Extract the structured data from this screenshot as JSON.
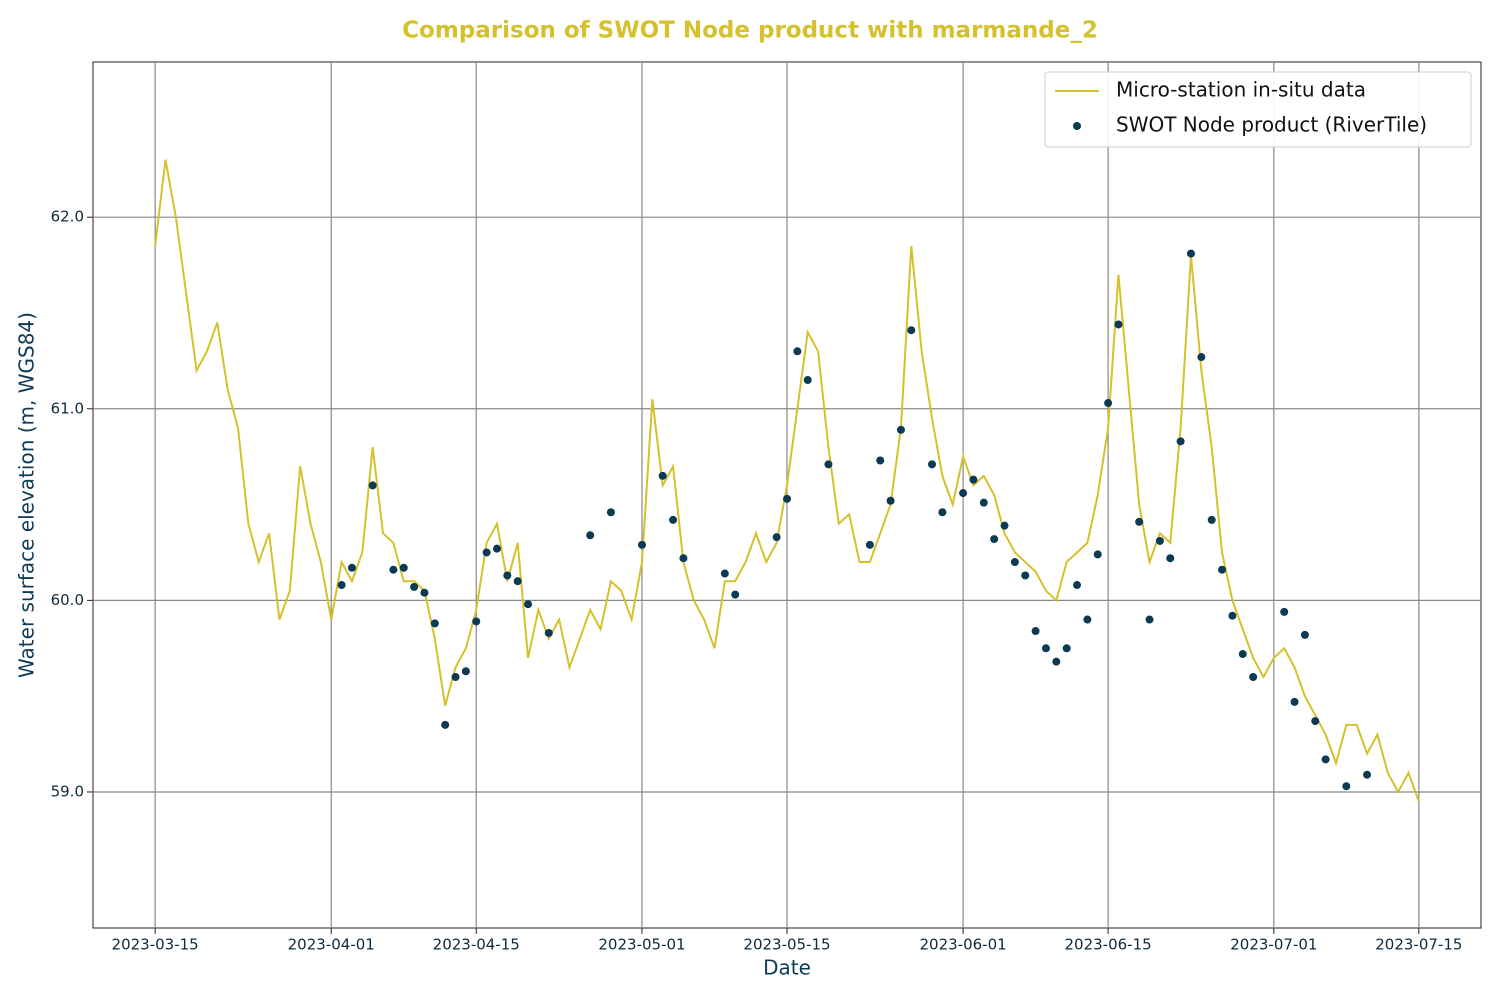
{
  "chart_data": {
    "type": "line-scatter",
    "title": "Comparison of SWOT Node product with marmande_2",
    "xlabel": "Date",
    "ylabel": "Water surface elevation (m, WGS84)",
    "xlim": [
      "2023-03-09",
      "2023-07-21"
    ],
    "xticks": [
      "2023-03-15",
      "2023-04-01",
      "2023-04-15",
      "2023-05-01",
      "2023-05-15",
      "2023-06-01",
      "2023-06-15",
      "2023-07-01",
      "2023-07-15"
    ],
    "ylim": [
      58.29,
      62.81
    ],
    "yticks": [
      {
        "value": 59,
        "label": "59.0"
      },
      {
        "value": 60,
        "label": "60.0"
      },
      {
        "value": 61,
        "label": "61.0"
      },
      {
        "value": 62,
        "label": "62.0"
      }
    ],
    "grid": true,
    "legend": "upper right",
    "series": [
      {
        "name": "Micro-station in-situ data",
        "kind": "line",
        "color": "#d4c12b",
        "x": [
          "2023-03-15",
          "2023-03-16",
          "2023-03-17",
          "2023-03-18",
          "2023-03-19",
          "2023-03-20",
          "2023-03-21",
          "2023-03-22",
          "2023-03-23",
          "2023-03-24",
          "2023-03-25",
          "2023-03-26",
          "2023-03-27",
          "2023-03-28",
          "2023-03-29",
          "2023-03-30",
          "2023-03-31",
          "2023-04-01",
          "2023-04-02",
          "2023-04-03",
          "2023-04-04",
          "2023-04-05",
          "2023-04-06",
          "2023-04-07",
          "2023-04-08",
          "2023-04-09",
          "2023-04-10",
          "2023-04-11",
          "2023-04-12",
          "2023-04-13",
          "2023-04-14",
          "2023-04-15",
          "2023-04-16",
          "2023-04-17",
          "2023-04-18",
          "2023-04-19",
          "2023-04-20",
          "2023-04-21",
          "2023-04-22",
          "2023-04-23",
          "2023-04-24",
          "2023-04-25",
          "2023-04-26",
          "2023-04-27",
          "2023-04-28",
          "2023-04-29",
          "2023-04-30",
          "2023-05-01",
          "2023-05-02",
          "2023-05-03",
          "2023-05-04",
          "2023-05-05",
          "2023-05-06",
          "2023-05-07",
          "2023-05-08",
          "2023-05-09",
          "2023-05-10",
          "2023-05-11",
          "2023-05-12",
          "2023-05-13",
          "2023-05-14",
          "2023-05-15",
          "2023-05-16",
          "2023-05-17",
          "2023-05-18",
          "2023-05-19",
          "2023-05-20",
          "2023-05-21",
          "2023-05-22",
          "2023-05-23",
          "2023-05-24",
          "2023-05-25",
          "2023-05-26",
          "2023-05-27",
          "2023-05-28",
          "2023-05-29",
          "2023-05-30",
          "2023-05-31",
          "2023-06-01",
          "2023-06-02",
          "2023-06-03",
          "2023-06-04",
          "2023-06-05",
          "2023-06-06",
          "2023-06-07",
          "2023-06-08",
          "2023-06-09",
          "2023-06-10",
          "2023-06-11",
          "2023-06-12",
          "2023-06-13",
          "2023-06-14",
          "2023-06-15",
          "2023-06-16",
          "2023-06-17",
          "2023-06-18",
          "2023-06-19",
          "2023-06-20",
          "2023-06-21",
          "2023-06-22",
          "2023-06-23",
          "2023-06-24",
          "2023-06-25",
          "2023-06-26",
          "2023-06-27",
          "2023-06-28",
          "2023-06-29",
          "2023-06-30",
          "2023-07-01",
          "2023-07-02",
          "2023-07-03",
          "2023-07-04",
          "2023-07-05",
          "2023-07-06",
          "2023-07-07",
          "2023-07-08",
          "2023-07-09",
          "2023-07-10",
          "2023-07-11",
          "2023-07-12",
          "2023-07-13",
          "2023-07-14",
          "2023-07-15"
        ],
        "values": [
          61.85,
          62.3,
          62.0,
          61.6,
          61.2,
          61.3,
          61.45,
          61.1,
          60.9,
          60.4,
          60.2,
          60.35,
          59.9,
          60.05,
          60.7,
          60.4,
          60.2,
          59.9,
          60.2,
          60.1,
          60.25,
          60.8,
          60.35,
          60.3,
          60.1,
          60.1,
          60.05,
          59.8,
          59.45,
          59.65,
          59.75,
          59.95,
          60.3,
          60.4,
          60.1,
          60.3,
          59.7,
          59.95,
          59.8,
          59.9,
          59.65,
          59.8,
          59.95,
          59.85,
          60.1,
          60.05,
          59.9,
          60.2,
          61.05,
          60.6,
          60.7,
          60.2,
          60.0,
          59.9,
          59.75,
          60.1,
          60.1,
          60.2,
          60.35,
          60.2,
          60.3,
          60.6,
          61.0,
          61.4,
          61.3,
          60.8,
          60.4,
          60.45,
          60.2,
          60.2,
          60.35,
          60.5,
          60.9,
          61.85,
          61.3,
          60.95,
          60.65,
          60.5,
          60.75,
          60.6,
          60.65,
          60.55,
          60.35,
          60.25,
          60.2,
          60.15,
          60.05,
          60.0,
          60.2,
          60.25,
          60.3,
          60.55,
          60.9,
          61.7,
          61.1,
          60.5,
          60.2,
          60.35,
          60.3,
          60.9,
          61.8,
          61.2,
          60.8,
          60.25,
          60.0,
          59.85,
          59.7,
          59.6,
          59.7,
          59.75,
          59.65,
          59.5,
          59.4,
          59.3,
          59.15,
          59.35,
          59.35,
          59.2,
          59.3,
          59.1,
          59.0,
          59.1,
          58.95
        ]
      },
      {
        "name": "SWOT Node product (RiverTile)",
        "kind": "scatter",
        "color": "#0b3a52",
        "x": [
          "2023-04-02",
          "2023-04-03",
          "2023-04-05",
          "2023-04-07",
          "2023-04-08",
          "2023-04-09",
          "2023-04-10",
          "2023-04-11",
          "2023-04-12",
          "2023-04-13",
          "2023-04-14",
          "2023-04-15",
          "2023-04-16",
          "2023-04-17",
          "2023-04-18",
          "2023-04-19",
          "2023-04-20",
          "2023-04-22",
          "2023-04-26",
          "2023-04-28",
          "2023-05-01",
          "2023-05-03",
          "2023-05-04",
          "2023-05-05",
          "2023-05-09",
          "2023-05-10",
          "2023-05-14",
          "2023-05-15",
          "2023-05-16",
          "2023-05-17",
          "2023-05-19",
          "2023-05-23",
          "2023-05-24",
          "2023-05-25",
          "2023-05-26",
          "2023-05-27",
          "2023-05-29",
          "2023-05-30",
          "2023-06-01",
          "2023-06-02",
          "2023-06-03",
          "2023-06-04",
          "2023-06-05",
          "2023-06-06",
          "2023-06-07",
          "2023-06-08",
          "2023-06-09",
          "2023-06-10",
          "2023-06-11",
          "2023-06-12",
          "2023-06-13",
          "2023-06-14",
          "2023-06-15",
          "2023-06-16",
          "2023-06-18",
          "2023-06-19",
          "2023-06-20",
          "2023-06-21",
          "2023-06-22",
          "2023-06-23",
          "2023-06-24",
          "2023-06-25",
          "2023-06-26",
          "2023-06-27",
          "2023-06-28",
          "2023-06-29",
          "2023-07-02",
          "2023-07-03",
          "2023-07-04",
          "2023-07-05",
          "2023-07-06",
          "2023-07-08",
          "2023-07-10"
        ],
        "values": [
          60.08,
          60.17,
          60.6,
          60.16,
          60.17,
          60.07,
          60.04,
          59.88,
          59.35,
          59.6,
          59.63,
          59.89,
          60.25,
          60.27,
          60.13,
          60.1,
          59.98,
          59.83,
          60.34,
          60.46,
          60.29,
          60.65,
          60.42,
          60.22,
          60.14,
          60.03,
          60.33,
          60.53,
          61.3,
          61.15,
          60.71,
          60.29,
          60.73,
          60.52,
          60.89,
          61.41,
          60.71,
          60.46,
          60.56,
          60.63,
          60.51,
          60.32,
          60.39,
          60.2,
          60.13,
          59.84,
          59.75,
          59.68,
          59.75,
          60.08,
          59.9,
          60.24,
          61.03,
          61.44,
          60.41,
          59.9,
          60.31,
          60.22,
          60.83,
          61.81,
          61.27,
          60.42,
          60.16,
          59.92,
          59.72,
          59.6,
          59.94,
          59.47,
          59.82,
          59.37,
          59.17,
          59.03,
          59.09
        ]
      }
    ]
  }
}
